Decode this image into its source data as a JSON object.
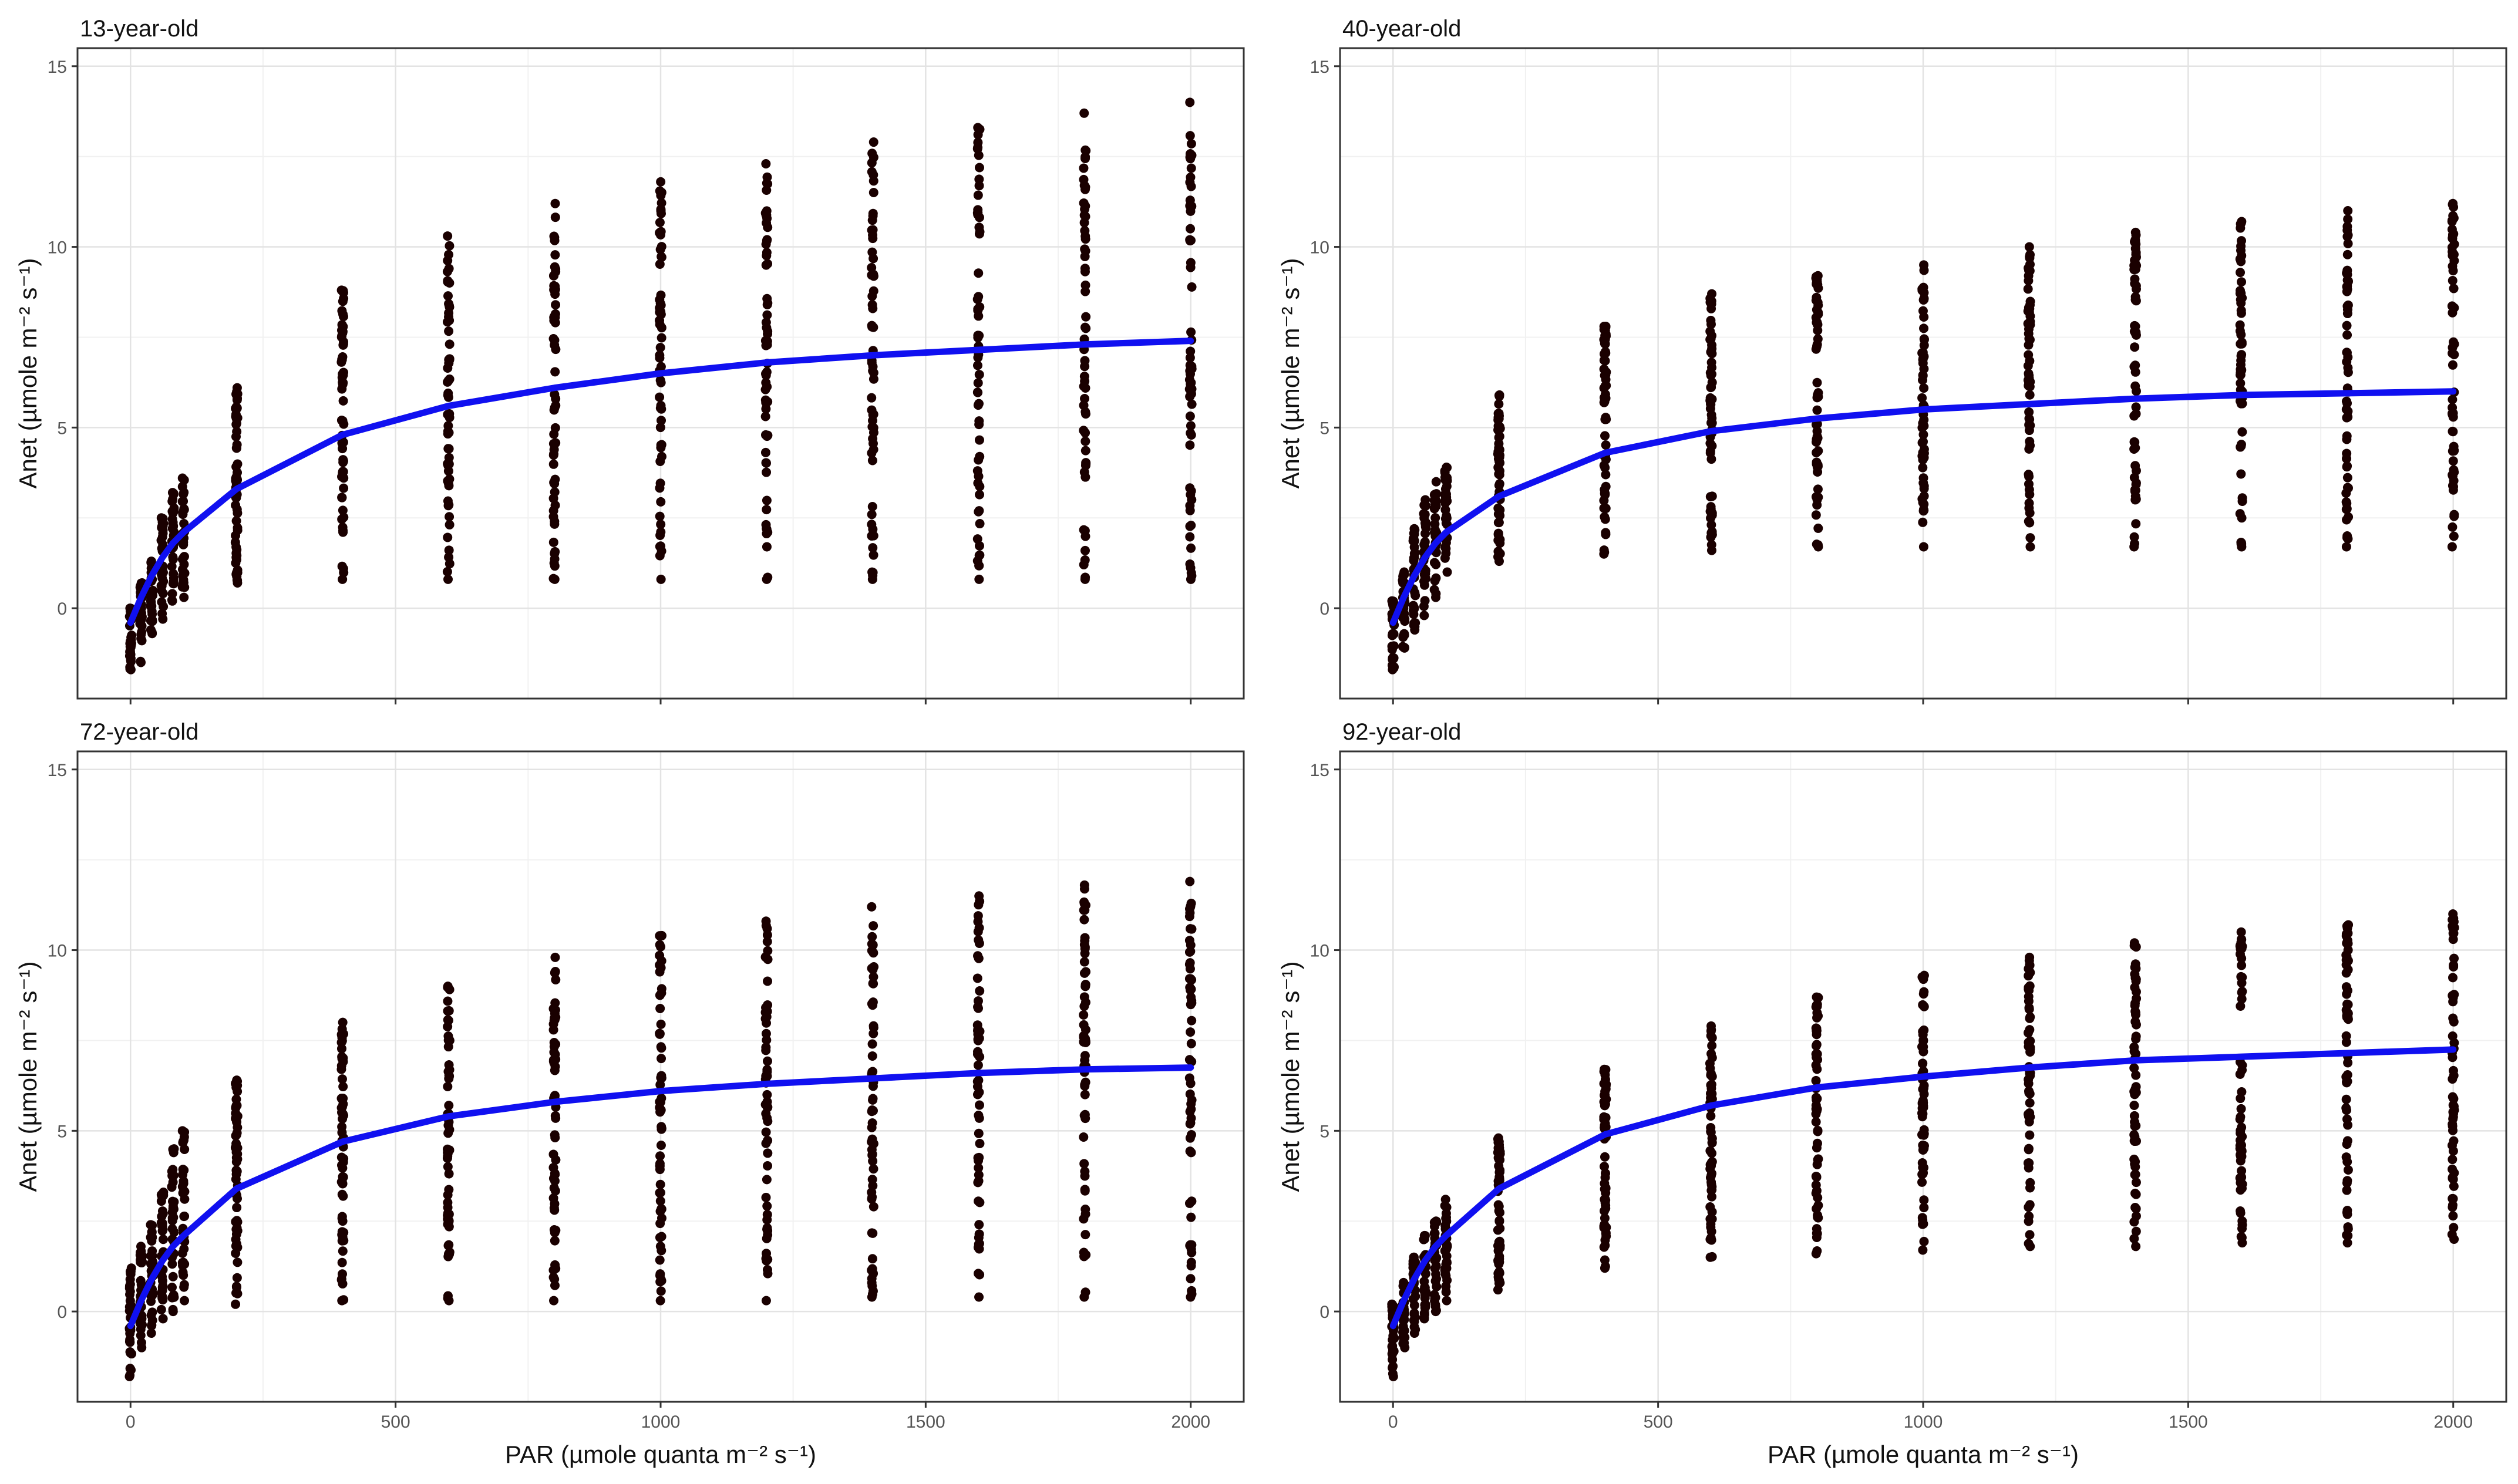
{
  "chart_data": {
    "type": "scatter",
    "figure_description": "Faceted scatter plots with fitted light-response curves",
    "xlabel": "PAR (µmole quanta m⁻² s⁻¹)",
    "ylabel": "Anet (µmole m⁻² s⁻¹)",
    "xlim": [
      -100,
      2100
    ],
    "ylim": [
      -2.5,
      15.5
    ],
    "xticks": [
      0,
      500,
      1000,
      1500,
      2000
    ],
    "yticks": [
      0,
      5,
      10,
      15
    ],
    "grid": true,
    "point_color": "#1a0000",
    "line_color": "#1010f0",
    "par_levels": [
      0,
      20,
      40,
      60,
      80,
      100,
      200,
      400,
      600,
      800,
      1000,
      1200,
      1400,
      1600,
      1800,
      2000
    ],
    "panels": [
      {
        "title": "13-year-old",
        "fit": {
          "x": [
            0,
            20,
            40,
            60,
            80,
            100,
            200,
            400,
            600,
            800,
            1000,
            1200,
            1400,
            1600,
            1800,
            2000
          ],
          "y": [
            -0.4,
            0.3,
            0.9,
            1.4,
            1.8,
            2.1,
            3.3,
            4.8,
            5.6,
            6.1,
            6.5,
            6.8,
            7.0,
            7.15,
            7.3,
            7.4
          ]
        },
        "point_ranges": [
          {
            "x": 0,
            "min": -1.7,
            "max": 0.0
          },
          {
            "x": 20,
            "min": -1.5,
            "max": 0.7
          },
          {
            "x": 40,
            "min": -0.7,
            "max": 1.3
          },
          {
            "x": 60,
            "min": -0.3,
            "max": 2.5
          },
          {
            "x": 80,
            "min": 0.2,
            "max": 3.2
          },
          {
            "x": 100,
            "min": 0.3,
            "max": 3.6
          },
          {
            "x": 200,
            "min": 0.7,
            "max": 6.1
          },
          {
            "x": 400,
            "min": 0.8,
            "max": 8.8
          },
          {
            "x": 600,
            "min": 0.8,
            "max": 10.3
          },
          {
            "x": 800,
            "min": 0.8,
            "max": 11.2
          },
          {
            "x": 1000,
            "min": 0.8,
            "max": 11.8
          },
          {
            "x": 1200,
            "min": 0.8,
            "max": 12.3
          },
          {
            "x": 1400,
            "min": 0.8,
            "max": 12.9
          },
          {
            "x": 1600,
            "min": 0.8,
            "max": 13.3
          },
          {
            "x": 1800,
            "min": 0.8,
            "max": 13.7
          },
          {
            "x": 2000,
            "min": 0.8,
            "max": 14.0
          }
        ]
      },
      {
        "title": "40-year-old",
        "fit": {
          "x": [
            0,
            20,
            40,
            60,
            80,
            100,
            200,
            400,
            600,
            800,
            1000,
            1200,
            1400,
            1600,
            1800,
            2000
          ],
          "y": [
            -0.4,
            0.3,
            0.9,
            1.4,
            1.8,
            2.1,
            3.1,
            4.3,
            4.9,
            5.25,
            5.5,
            5.65,
            5.8,
            5.9,
            5.95,
            6.0
          ]
        },
        "point_ranges": [
          {
            "x": 0,
            "min": -1.7,
            "max": 0.2
          },
          {
            "x": 20,
            "min": -1.1,
            "max": 1.0
          },
          {
            "x": 40,
            "min": -0.6,
            "max": 2.2
          },
          {
            "x": 60,
            "min": -0.2,
            "max": 3.0
          },
          {
            "x": 80,
            "min": 0.3,
            "max": 3.5
          },
          {
            "x": 100,
            "min": 1.0,
            "max": 3.9
          },
          {
            "x": 200,
            "min": 1.3,
            "max": 5.9
          },
          {
            "x": 400,
            "min": 1.5,
            "max": 7.8
          },
          {
            "x": 600,
            "min": 1.6,
            "max": 8.7
          },
          {
            "x": 800,
            "min": 1.7,
            "max": 9.2
          },
          {
            "x": 1000,
            "min": 1.7,
            "max": 9.5
          },
          {
            "x": 1200,
            "min": 1.7,
            "max": 10.0
          },
          {
            "x": 1400,
            "min": 1.7,
            "max": 10.4
          },
          {
            "x": 1600,
            "min": 1.7,
            "max": 10.7
          },
          {
            "x": 1800,
            "min": 1.7,
            "max": 11.0
          },
          {
            "x": 2000,
            "min": 1.7,
            "max": 11.2
          }
        ]
      },
      {
        "title": "72-year-old",
        "fit": {
          "x": [
            0,
            20,
            40,
            60,
            80,
            100,
            200,
            400,
            600,
            800,
            1000,
            1200,
            1400,
            1600,
            1800,
            2000
          ],
          "y": [
            -0.4,
            0.3,
            0.9,
            1.4,
            1.8,
            2.1,
            3.4,
            4.7,
            5.4,
            5.8,
            6.1,
            6.3,
            6.45,
            6.6,
            6.7,
            6.75
          ]
        },
        "point_ranges": [
          {
            "x": 0,
            "min": -1.8,
            "max": 1.2
          },
          {
            "x": 20,
            "min": -1.0,
            "max": 1.8
          },
          {
            "x": 40,
            "min": -0.6,
            "max": 2.4
          },
          {
            "x": 60,
            "min": -0.2,
            "max": 3.3
          },
          {
            "x": 80,
            "min": 0.0,
            "max": 4.5
          },
          {
            "x": 100,
            "min": 0.3,
            "max": 5.0
          },
          {
            "x": 200,
            "min": 0.2,
            "max": 6.4
          },
          {
            "x": 400,
            "min": 0.3,
            "max": 8.0
          },
          {
            "x": 600,
            "min": 0.3,
            "max": 9.0
          },
          {
            "x": 800,
            "min": 0.3,
            "max": 9.8
          },
          {
            "x": 1000,
            "min": 0.3,
            "max": 10.4
          },
          {
            "x": 1200,
            "min": 0.3,
            "max": 10.8
          },
          {
            "x": 1400,
            "min": 0.4,
            "max": 11.2
          },
          {
            "x": 1600,
            "min": 0.4,
            "max": 11.5
          },
          {
            "x": 1800,
            "min": 0.4,
            "max": 11.8
          },
          {
            "x": 2000,
            "min": 0.4,
            "max": 11.9
          }
        ]
      },
      {
        "title": "92-year-old",
        "fit": {
          "x": [
            0,
            20,
            40,
            60,
            80,
            100,
            200,
            400,
            600,
            800,
            1000,
            1200,
            1400,
            1600,
            1800,
            2000
          ],
          "y": [
            -0.4,
            0.3,
            0.9,
            1.4,
            1.8,
            2.1,
            3.4,
            4.9,
            5.7,
            6.2,
            6.5,
            6.75,
            6.95,
            7.05,
            7.15,
            7.25
          ]
        },
        "point_ranges": [
          {
            "x": 0,
            "min": -1.8,
            "max": 0.2
          },
          {
            "x": 20,
            "min": -1.0,
            "max": 0.8
          },
          {
            "x": 40,
            "min": -0.6,
            "max": 1.5
          },
          {
            "x": 60,
            "min": -0.2,
            "max": 2.1
          },
          {
            "x": 80,
            "min": 0.0,
            "max": 2.5
          },
          {
            "x": 100,
            "min": 0.3,
            "max": 3.1
          },
          {
            "x": 200,
            "min": 0.6,
            "max": 4.8
          },
          {
            "x": 400,
            "min": 1.2,
            "max": 6.7
          },
          {
            "x": 600,
            "min": 1.5,
            "max": 7.9
          },
          {
            "x": 800,
            "min": 1.6,
            "max": 8.7
          },
          {
            "x": 1000,
            "min": 1.7,
            "max": 9.3
          },
          {
            "x": 1200,
            "min": 1.8,
            "max": 9.8
          },
          {
            "x": 1400,
            "min": 1.8,
            "max": 10.2
          },
          {
            "x": 1600,
            "min": 1.9,
            "max": 10.5
          },
          {
            "x": 1800,
            "min": 1.9,
            "max": 10.7
          },
          {
            "x": 2000,
            "min": 2.0,
            "max": 11.0
          }
        ]
      }
    ]
  }
}
